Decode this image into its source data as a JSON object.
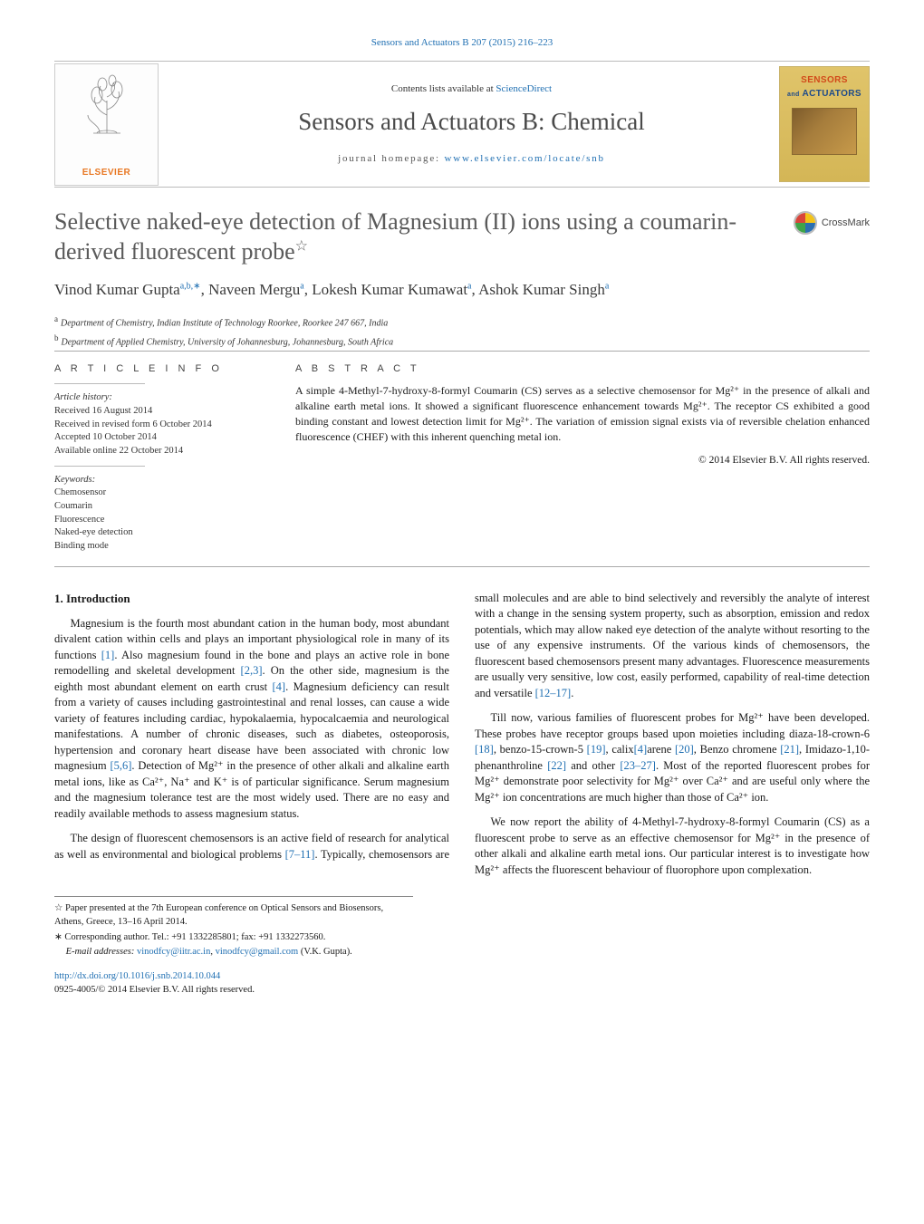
{
  "header": {
    "citation_prefix": "Sensors and Actuators B 207 (2015) 216–223",
    "contents_line_pre": "Contents lists available at ",
    "contents_line_link": "ScienceDirect",
    "journal_name": "Sensors and Actuators B: Chemical",
    "homepage_pre": "journal homepage: ",
    "homepage_link": "www.elsevier.com/locate/snb",
    "publisher_word": "ELSEVIER",
    "cover_word1": "SENSORS",
    "cover_word2": "ACTUATORS"
  },
  "title": {
    "text": "Selective naked-eye detection of Magnesium (II) ions using a coumarin-derived fluorescent probe",
    "footnote_symbol": "☆"
  },
  "crossmark_label": "CrossMark",
  "authors_html": "Vinod Kumar Gupta",
  "authors": [
    {
      "name": "Vinod Kumar Gupta",
      "marks": "a,b,∗"
    },
    {
      "name": "Naveen Mergu",
      "marks": "a"
    },
    {
      "name": "Lokesh Kumar Kumawat",
      "marks": "a"
    },
    {
      "name": "Ashok Kumar Singh",
      "marks": "a"
    }
  ],
  "affiliations": [
    {
      "mark": "a",
      "text": "Department of Chemistry, Indian Institute of Technology Roorkee, Roorkee 247 667, India"
    },
    {
      "mark": "b",
      "text": "Department of Applied Chemistry, University of Johannesburg, Johannesburg, South Africa"
    }
  ],
  "article_info": {
    "heading": "A R T I C L E   I N F O",
    "history_label": "Article history:",
    "history": [
      "Received 16 August 2014",
      "Received in revised form 6 October 2014",
      "Accepted 10 October 2014",
      "Available online 22 October 2014"
    ],
    "keywords_label": "Keywords:",
    "keywords": [
      "Chemosensor",
      "Coumarin",
      "Fluorescence",
      "Naked-eye detection",
      "Binding mode"
    ]
  },
  "abstract": {
    "heading": "A B S T R A C T",
    "text": "A simple 4-Methyl-7-hydroxy-8-formyl Coumarin (CS) serves as a selective chemosensor for Mg²⁺ in the presence of alkali and alkaline earth metal ions. It showed a significant fluorescence enhancement towards Mg²⁺. The receptor CS exhibited a good binding constant and lowest detection limit for Mg²⁺. The variation of emission signal exists via of reversible chelation enhanced fluorescence (CHEF) with this inherent quenching metal ion.",
    "copyright": "© 2014 Elsevier B.V. All rights reserved."
  },
  "section1_heading": "1.  Introduction",
  "paragraphs": {
    "p1": "Magnesium is the fourth most abundant cation in the human body, most abundant divalent cation within cells and plays an important physiological role in many of its functions [1]. Also magnesium found in the bone and plays an active role in bone remodelling and skeletal development [2,3]. On the other side, magnesium is the eighth most abundant element on earth crust [4]. Magnesium deficiency can result from a variety of causes including gastrointestinal and renal losses, can cause a wide variety of features including cardiac, hypokalaemia, hypocalcaemia and neurological manifestations. A number of chronic diseases, such as diabetes, osteoporosis, hypertension and coronary heart disease have been associated with chronic low magnesium [5,6]. Detection of Mg²⁺ in the presence of other alkali and alkaline earth metal ions, like as Ca²⁺, Na⁺ and K⁺ is of particular significance. Serum magnesium and the magnesium tolerance test are the most widely used. There are no easy and readily available methods to assess magnesium status.",
    "p2": "The design of fluorescent chemosensors is an active field of research for analytical as well as environmental and biological problems [7–11]. Typically, chemosensors are small molecules and are able to bind selectively and reversibly the analyte of interest with a change in the sensing system property, such as absorption, emission and redox potentials, which may allow naked eye detection of the analyte without resorting to the use of any expensive instruments. Of the various kinds of chemosensors, the fluorescent based chemosensors present many advantages. Fluorescence measurements are usually very sensitive, low cost, easily performed, capability of real-time detection and versatile [12–17].",
    "p3": "Till now, various families of fluorescent probes for Mg²⁺ have been developed. These probes have receptor groups based upon moieties including diaza-18-crown-6 [18], benzo-15-crown-5 [19], calix[4]arene [20], Benzo chromene [21], Imidazo-1,10-phenanthroline [22] and other [23–27]. Most of the reported fluorescent probes for Mg²⁺ demonstrate poor selectivity for Mg²⁺ over Ca²⁺ and are useful only where the Mg²⁺ ion concentrations are much higher than those of Ca²⁺ ion.",
    "p4": "We now report the ability of 4-Methyl-7-hydroxy-8-formyl Coumarin (CS) as a fluorescent probe to serve as an effective chemosensor for Mg²⁺ in the presence of other alkali and alkaline earth metal ions. Our particular interest is to investigate how Mg²⁺ affects the fluorescent behaviour of fluorophore upon complexation."
  },
  "footnotes": {
    "star": "☆ Paper presented at the 7th European conference on Optical Sensors and Biosensors, Athens, Greece, 13–16 April 2014.",
    "corr1": "∗ Corresponding author. Tel.: +91 1332285801; fax: +91 1332273560.",
    "corr2_pre": "E-mail addresses: ",
    "email1": "vinodfcy@iitr.ac.in",
    "email_sep": ", ",
    "email2": "vinodfcy@gmail.com",
    "corr2_post": " (V.K. Gupta)."
  },
  "footer": {
    "doi": "http://dx.doi.org/10.1016/j.snb.2014.10.044",
    "issn_line": "0925-4005/© 2014 Elsevier B.V. All rights reserved."
  },
  "colors": {
    "link": "#1f6fb2",
    "title": "#5a5a5a",
    "publisher": "#e87722",
    "rule": "#aaaaaa"
  }
}
